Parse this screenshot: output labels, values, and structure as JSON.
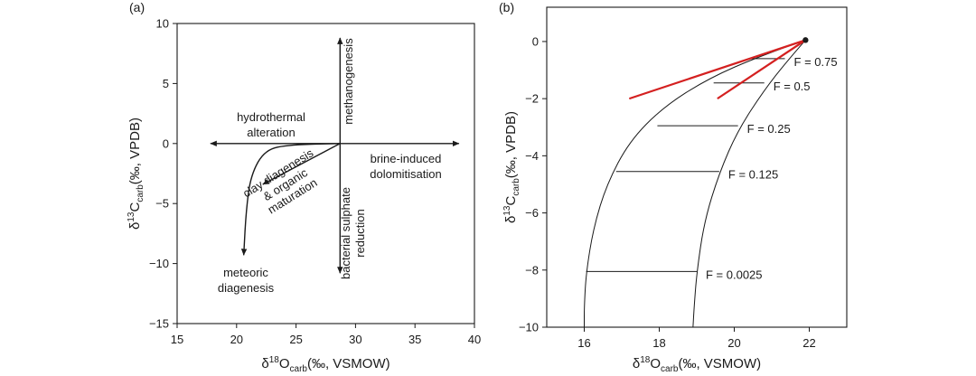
{
  "chart_data": [
    {
      "panel": "(a)",
      "type": "diagram",
      "xlabel": {
        "prefix": "δ",
        "sup": "18",
        "main": "O",
        "sub": "carb",
        "suffix": "(‰, VSMOW)"
      },
      "ylabel": {
        "prefix": "δ",
        "sup": "13",
        "main": "C",
        "sub": "carb",
        "suffix": "(‰, VPDB)"
      },
      "xlim": [
        15,
        40
      ],
      "ylim": [
        -15,
        10
      ],
      "xticks": [
        15,
        20,
        25,
        30,
        35,
        40
      ],
      "yticks": [
        10,
        5,
        0,
        -5,
        -10,
        -15
      ],
      "origin": [
        28.7,
        0
      ],
      "processes": [
        {
          "label_lines": [
            "methanogenesis"
          ],
          "arrow_from": [
            28.7,
            0
          ],
          "arrow_to": [
            28.7,
            8.8
          ]
        },
        {
          "label_lines": [
            "hydrothermal",
            "alteration"
          ],
          "arrow_from": [
            28.7,
            0
          ],
          "arrow_to": [
            17.8,
            0
          ]
        },
        {
          "label_lines": [
            "brine-induced",
            "dolomitisation"
          ],
          "arrow_from": [
            28.7,
            0
          ],
          "arrow_to": [
            38.7,
            0
          ]
        },
        {
          "label_lines": [
            "bacterial sulphate",
            "reduction"
          ],
          "arrow_from": [
            28.7,
            0
          ],
          "arrow_to": [
            28.7,
            -10.8
          ]
        },
        {
          "label_lines": [
            "clay diagenesis",
            "& organic",
            "maturation"
          ],
          "arrow_from": [
            28.7,
            0
          ],
          "arrow_to": [
            22.2,
            -3.4
          ]
        },
        {
          "label_lines": [
            "meteoric",
            "diagenesis"
          ],
          "curve": [
            [
              28.7,
              0
            ],
            [
              24.5,
              -0.1
            ],
            [
              22.4,
              -0.5
            ],
            [
              21.2,
              -2.6
            ],
            [
              20.8,
              -5.6
            ],
            [
              20.6,
              -9.3
            ]
          ]
        }
      ]
    },
    {
      "panel": "(b)",
      "type": "line",
      "xlabel": {
        "prefix": "δ",
        "sup": "18",
        "main": "O",
        "sub": "carb",
        "suffix": "(‰, VSMOW)"
      },
      "ylabel": {
        "prefix": "δ",
        "sup": "13",
        "main": "C",
        "sub": "carb",
        "suffix": "(‰, VPDB)"
      },
      "xlim": [
        15,
        23
      ],
      "ylim": [
        -10,
        1.2
      ],
      "xticks": [
        16,
        18,
        20,
        22
      ],
      "yticks": [
        0,
        -2,
        -4,
        -6,
        -8,
        -10
      ],
      "start_point": [
        21.9,
        0.05
      ],
      "envelope_left": [
        [
          21.9,
          0.05
        ],
        [
          20.7,
          -0.5
        ],
        [
          19.3,
          -1.3
        ],
        [
          18.1,
          -2.3
        ],
        [
          17.2,
          -3.5
        ],
        [
          16.6,
          -5.0
        ],
        [
          16.25,
          -6.5
        ],
        [
          16.05,
          -8.1
        ],
        [
          16.0,
          -9.3
        ],
        [
          16.0,
          -10.0
        ]
      ],
      "envelope_right": [
        [
          21.9,
          0.05
        ],
        [
          21.4,
          -0.7
        ],
        [
          20.8,
          -1.7
        ],
        [
          20.1,
          -3.1
        ],
        [
          19.6,
          -4.6
        ],
        [
          19.2,
          -6.3
        ],
        [
          19.0,
          -8.1
        ],
        [
          18.93,
          -9.3
        ],
        [
          18.9,
          -10.0
        ]
      ],
      "f_lines": [
        {
          "label": "F = 0.75",
          "y": -0.6,
          "x_start": 20.4,
          "x_end": 21.35
        },
        {
          "label": "F = 0.5",
          "y": -1.45,
          "x_start": 19.45,
          "x_end": 20.8
        },
        {
          "label": "F = 0.25",
          "y": -2.95,
          "x_start": 17.95,
          "x_end": 20.1
        },
        {
          "label": "F = 0.125",
          "y": -4.55,
          "x_start": 16.85,
          "x_end": 19.6
        },
        {
          "label": "F = 0.0025",
          "y": -8.05,
          "x_start": 16.05,
          "x_end": 19.0
        }
      ],
      "red_lines": [
        {
          "from": [
            21.9,
            0.05
          ],
          "to": [
            17.2,
            -2.0
          ]
        },
        {
          "from": [
            21.9,
            0.05
          ],
          "to": [
            19.55,
            -2.0
          ]
        }
      ],
      "colors": {
        "red": "#d42020",
        "black": "#1a1a1a"
      }
    }
  ]
}
